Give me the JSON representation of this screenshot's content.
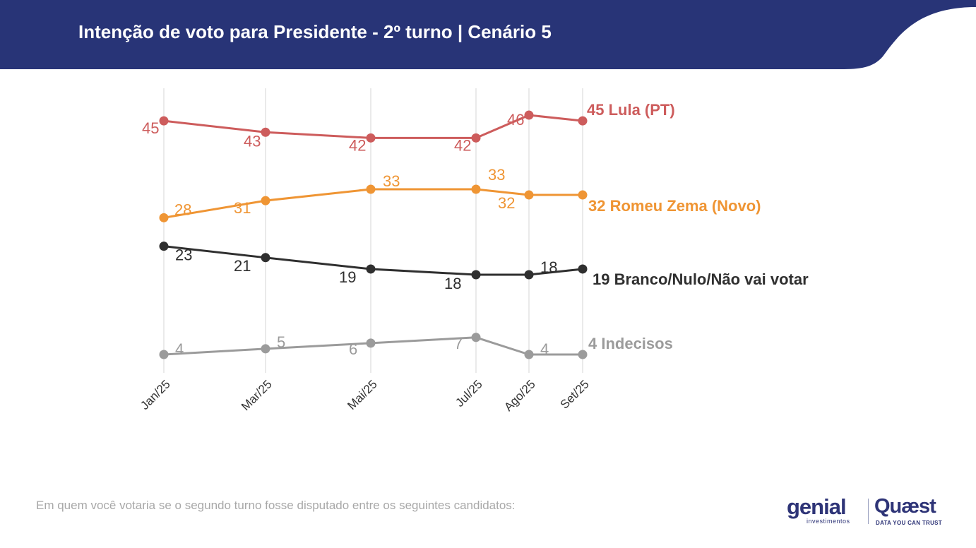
{
  "header": {
    "title": "Intenção de voto para Presidente - 2º turno | Cenário 5",
    "background_color": "#283477"
  },
  "chart_data": {
    "type": "line",
    "title": "Intenção de voto para Presidente - 2º turno | Cenário 5",
    "x": [
      "Jan/25",
      "Mar/25",
      "Mai/25",
      "Jul/25",
      "Ago/25",
      "Set/25"
    ],
    "ylim": [
      0,
      50
    ],
    "grid": "vertical",
    "legend": "end-of-line labels",
    "series": [
      {
        "name": "Lula (PT)",
        "color": "#cd5c5c",
        "values": [
          45,
          43,
          42,
          42,
          46,
          45
        ]
      },
      {
        "name": "Romeu Zema (Novo)",
        "color": "#ef9534",
        "values": [
          28,
          31,
          33,
          33,
          32,
          32
        ]
      },
      {
        "name": "Branco/Nulo/Não vai votar",
        "color": "#2f2f2f",
        "values": [
          23,
          21,
          19,
          18,
          18,
          19
        ]
      },
      {
        "name": "Indecisos",
        "color": "#9b9b9b",
        "values": [
          4,
          5,
          6,
          7,
          4,
          4
        ]
      }
    ]
  },
  "footnote": "Em quem você votaria se o segundo turno fosse disputado entre os seguintes candidatos:",
  "logos": {
    "genial": "genial",
    "genial_sub": "investimentos",
    "quaest": "Quæst",
    "quaest_sub": "DATA YOU CAN TRUST"
  }
}
